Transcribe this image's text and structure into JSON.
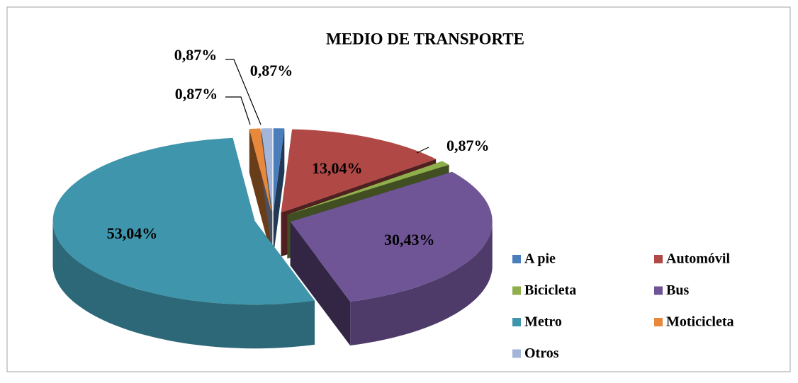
{
  "chart_data": {
    "type": "pie3d",
    "title": "MEDIO DE TRANSPORTE",
    "categories": [
      "A pie",
      "Automóvil",
      "Bicicleta",
      "Bus",
      "Metro",
      "Moticicleta",
      "Otros"
    ],
    "values": [
      0.87,
      13.04,
      0.87,
      30.43,
      53.04,
      0.87,
      0.87
    ],
    "value_labels": [
      "0,87%",
      "13,04%",
      "0,87%",
      "30,43%",
      "53,04%",
      "0,87%",
      "0,87%"
    ],
    "colors": [
      "#4a7ebb",
      "#b04845",
      "#8fae4c",
      "#6f5596",
      "#3f95ab",
      "#e8883a",
      "#a3b5d8"
    ],
    "legend": "right"
  }
}
